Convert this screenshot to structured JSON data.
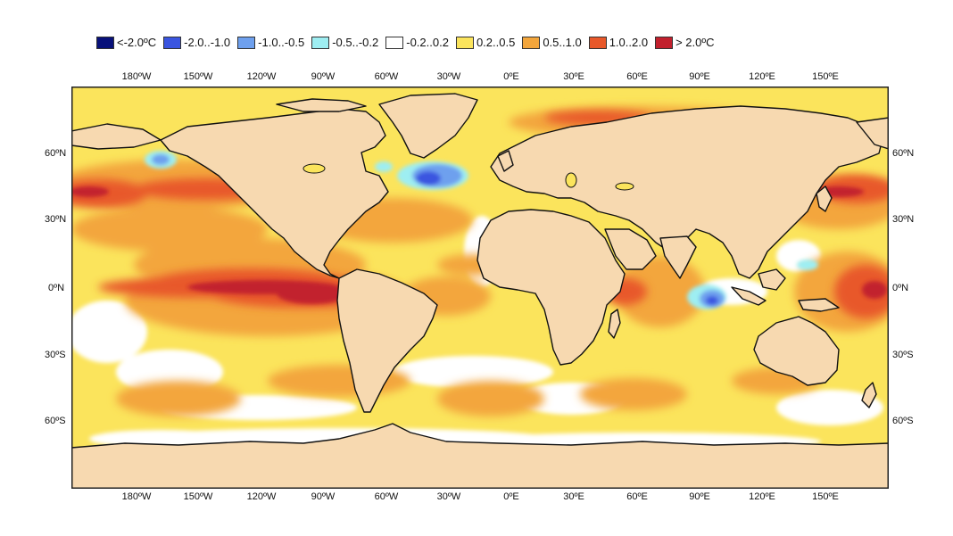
{
  "legend": [
    {
      "label": "<-2.0ºC",
      "color": "#08117a"
    },
    {
      "label": "-2.0..-1.0",
      "color": "#3a55e0"
    },
    {
      "label": "-1.0..-0.5",
      "color": "#6ea0ee"
    },
    {
      "label": "-0.5..-0.2",
      "color": "#9eeef2"
    },
    {
      "label": "-0.2..0.2",
      "color": "#ffffff"
    },
    {
      "label": "0.2..0.5",
      "color": "#fbe45c"
    },
    {
      "label": "0.5..1.0",
      "color": "#f3a63c"
    },
    {
      "label": "1.0..2.0",
      "color": "#e8582a"
    },
    {
      "label": "> 2.0ºC",
      "color": "#c2202d"
    }
  ],
  "axes": {
    "lon_ticks": [
      "180ºW",
      "150ºW",
      "120ºW",
      "90ºW",
      "60ºW",
      "30ºW",
      "0ºE",
      "30ºE",
      "60ºE",
      "90ºE",
      "120ºE",
      "150ºE"
    ],
    "lat_ticks": [
      "60ºN",
      "30ºN",
      "0ºN",
      "30ºS",
      "60ºS"
    ]
  },
  "colors": {
    "land": "#f7d9b0",
    "coast": "#111111",
    "frame": "#222222"
  }
}
